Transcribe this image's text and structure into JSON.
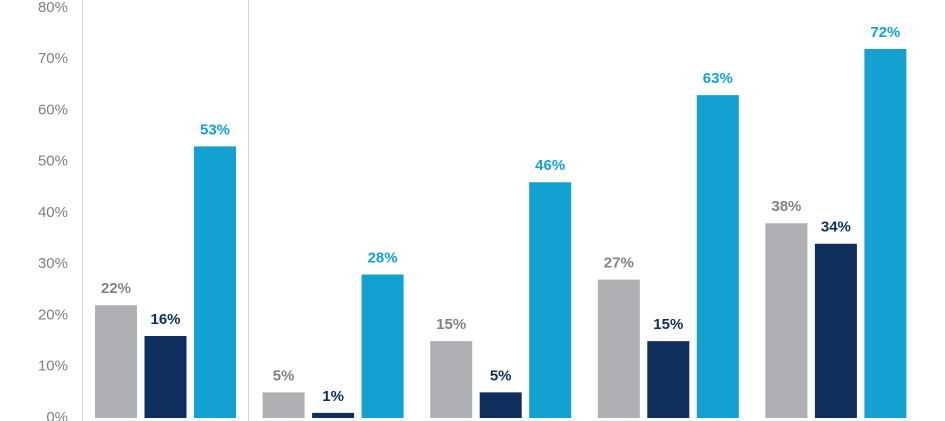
{
  "chart_data": {
    "type": "bar",
    "series": [
      {
        "color": "#aeb0b3",
        "label_color": "#808285",
        "values": [
          22,
          5,
          15,
          27,
          38
        ],
        "value_labels": [
          "22%",
          "5%",
          "15%",
          "27%",
          "38%"
        ]
      },
      {
        "color": "#0e2e5c",
        "label_color": "#0e2e5c",
        "values": [
          16,
          1,
          5,
          15,
          34
        ],
        "value_labels": [
          "16%",
          "1%",
          "5%",
          "15%",
          "34%"
        ]
      },
      {
        "color": "#13a1d1",
        "label_color": "#13a1d1",
        "values": [
          53,
          28,
          46,
          63,
          72
        ],
        "value_labels": [
          "53%",
          "28%",
          "46%",
          "63%",
          "72%"
        ]
      }
    ],
    "ylim": [
      0,
      80
    ],
    "yticks": [
      {
        "value": 0,
        "label": "0%"
      },
      {
        "value": 10,
        "label": "10%"
      },
      {
        "value": 20,
        "label": "20%"
      },
      {
        "value": 30,
        "label": "30%"
      },
      {
        "value": 40,
        "label": "40%"
      },
      {
        "value": 50,
        "label": "50%"
      },
      {
        "value": 60,
        "label": "60%"
      },
      {
        "value": 70,
        "label": "70%"
      },
      {
        "value": 80,
        "label": "80%"
      }
    ],
    "grid": false
  }
}
